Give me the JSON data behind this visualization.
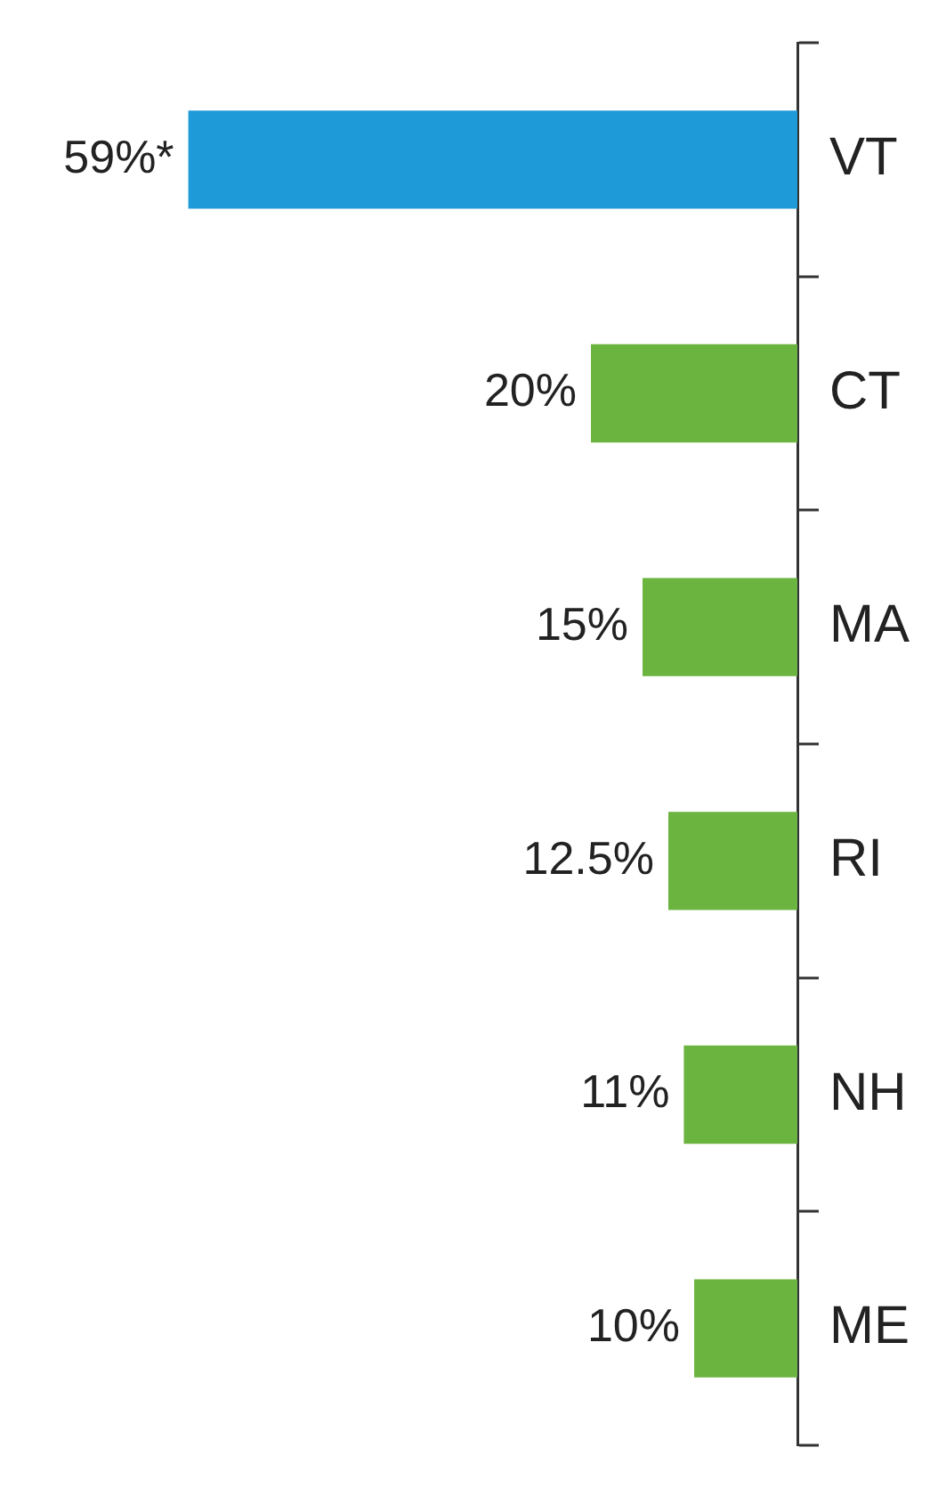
{
  "chart_data": {
    "type": "bar",
    "orientation": "horizontal",
    "categories": [
      "VT",
      "CT",
      "MA",
      "RI",
      "NH",
      "ME"
    ],
    "values": [
      59,
      20,
      15,
      12.5,
      11,
      10
    ],
    "colors": [
      "#1f9ad8",
      "#6bb43f",
      "#6bb43f",
      "#6bb43f",
      "#6bb43f",
      "#6bb43f"
    ],
    "value_labels": [
      "59%*",
      "20%",
      "15%",
      "12.5%",
      "11%",
      "10%"
    ],
    "grid": false,
    "legend": false,
    "tick_labels": "y"
  }
}
